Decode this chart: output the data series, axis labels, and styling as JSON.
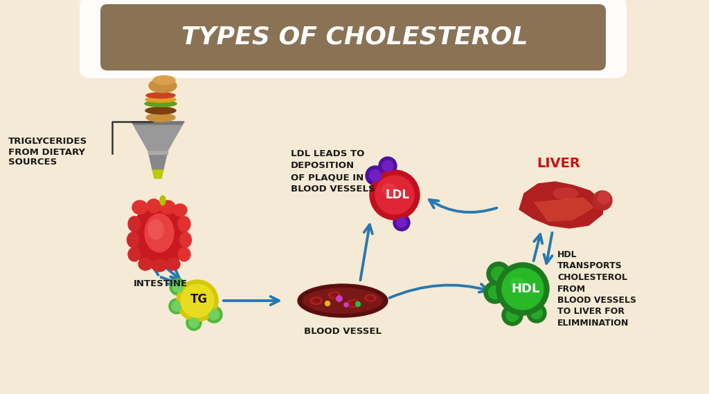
{
  "title": "TYPES OF CHOLESTEROL",
  "title_bg": "#8a7355",
  "title_color": "#ffffff",
  "bg_color_center": "#f5ead5",
  "bg_color_edge": "#e8d5b0",
  "label_triglycerides": "TRIGLYCERIDES\nFROM DIETARY\nSOURCES",
  "label_intestine": "INTESTINE",
  "label_tg": "TG",
  "label_blood_vessel": "BLOOD VESSEL",
  "label_ldl_desc": "LDL LEADS TO\nDEPOSITION\nOF PLAQUE IN\nBLOOD VESSELS",
  "label_ldl": "LDL",
  "label_liver": "LIVER",
  "label_hdl": "HDL",
  "label_hdl_desc": "HDL\nTRANSPORTS\nCHOLESTEROL\nFROM\nBLOOD VESSELS\nTO LIVER FOR\nELIMMINATION",
  "arrow_color": "#2878b0",
  "label_color_dark": "#1a1a1a",
  "label_color_red": "#cc1111",
  "label_color_white": "#ffffff",
  "funnel_color": "#888888",
  "funnel_dark": "#666666"
}
